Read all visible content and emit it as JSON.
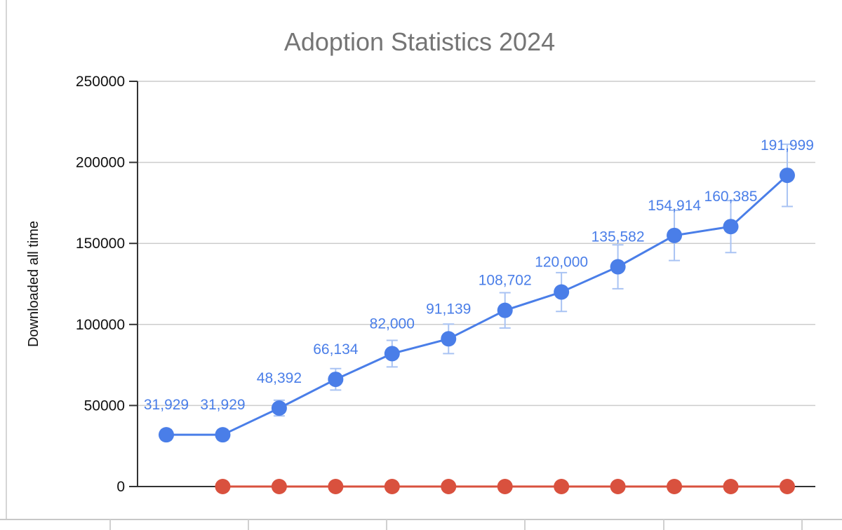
{
  "chart_data": {
    "type": "line",
    "title": "Adoption Statistics 2024",
    "xlabel": "",
    "ylabel": "Downloaded all time",
    "ylim": [
      0,
      250000
    ],
    "y_ticks": [
      "0",
      "50000",
      "100000",
      "150000",
      "200000",
      "250000"
    ],
    "grid": true,
    "legend": "none",
    "series": [
      {
        "color": "#4a7ee8",
        "values": [
          31929,
          31929,
          48392,
          66134,
          82000,
          91139,
          108702,
          120000,
          135582,
          154914,
          160385,
          191999
        ],
        "data_labels": [
          "31,929",
          "31,929",
          "48,392",
          "66,134",
          "82,000",
          "91,139",
          "108,702",
          "120,000",
          "135,582",
          "154,914",
          "160,385",
          "191,999"
        ],
        "error_bar_fraction": 0.1
      },
      {
        "color": "#d9513e",
        "start_index": 1,
        "values": [
          0,
          0,
          0,
          0,
          0,
          0,
          0,
          0,
          0,
          0,
          0
        ]
      }
    ]
  }
}
